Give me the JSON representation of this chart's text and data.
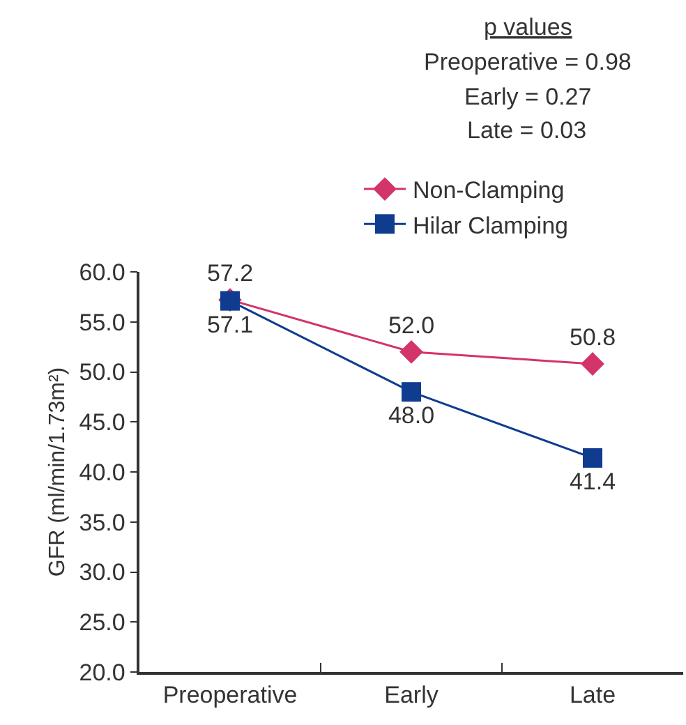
{
  "chart_data": {
    "type": "line",
    "categories": [
      "Preoperative",
      "Early",
      "Late"
    ],
    "series": [
      {
        "name": "Non-Clamping",
        "color": "#d3346b",
        "marker": "diamond",
        "values": [
          57.2,
          52.0,
          50.8
        ],
        "value_labels": [
          "57.2",
          "52.0",
          "50.8"
        ]
      },
      {
        "name": "Hilar Clamping",
        "color": "#0f3c8e",
        "marker": "square",
        "values": [
          57.1,
          48.0,
          41.4
        ],
        "value_labels": [
          "57.1",
          "48.0",
          "41.4"
        ]
      }
    ],
    "ylabel": "GFR (ml/min/1.73m²)",
    "ylim": [
      20,
      60
    ],
    "yticks": [
      {
        "value": 20,
        "label": "20.0"
      },
      {
        "value": 25,
        "label": "25.0"
      },
      {
        "value": 30,
        "label": "30.0"
      },
      {
        "value": 35,
        "label": "35.0"
      },
      {
        "value": 40,
        "label": "40.0"
      },
      {
        "value": 45,
        "label": "45.0"
      },
      {
        "value": 50,
        "label": "50.0"
      },
      {
        "value": 55,
        "label": "55.0"
      },
      {
        "value": 60,
        "label": "60.0"
      }
    ],
    "annotations": [
      "p values",
      "Preoperative = 0.98",
      "Early = 0.27",
      "Late = 0.03"
    ],
    "legend": "top right",
    "grid": false,
    "line_style": "solid"
  }
}
